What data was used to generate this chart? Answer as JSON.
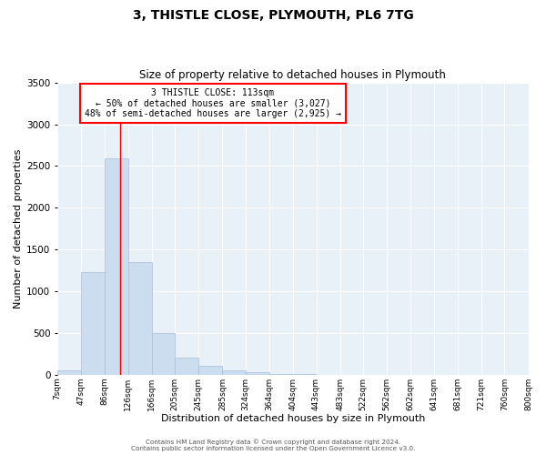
{
  "title": "3, THISTLE CLOSE, PLYMOUTH, PL6 7TG",
  "subtitle": "Size of property relative to detached houses in Plymouth",
  "xlabel": "Distribution of detached houses by size in Plymouth",
  "ylabel": "Number of detached properties",
  "bar_color": "#ccddf0",
  "bar_edgecolor": "#aabfd8",
  "background_color": "#e8f0f8",
  "grid_color": "#ffffff",
  "bin_labels": [
    "7sqm",
    "47sqm",
    "86sqm",
    "126sqm",
    "166sqm",
    "205sqm",
    "245sqm",
    "285sqm",
    "324sqm",
    "364sqm",
    "404sqm",
    "443sqm",
    "483sqm",
    "522sqm",
    "562sqm",
    "602sqm",
    "641sqm",
    "681sqm",
    "721sqm",
    "760sqm",
    "800sqm"
  ],
  "bar_values": [
    50,
    1230,
    2590,
    1350,
    500,
    200,
    110,
    50,
    30,
    10,
    5,
    0,
    0,
    0,
    0,
    0,
    0,
    0,
    0,
    0
  ],
  "ylim": [
    0,
    3500
  ],
  "yticks": [
    0,
    500,
    1000,
    1500,
    2000,
    2500,
    3000,
    3500
  ],
  "red_line_x": 113,
  "annotation_title": "3 THISTLE CLOSE: 113sqm",
  "annotation_line1": "← 50% of detached houses are smaller (3,027)",
  "annotation_line2": "48% of semi-detached houses are larger (2,925) →",
  "footer1": "Contains HM Land Registry data © Crown copyright and database right 2024.",
  "footer2": "Contains public sector information licensed under the Open Government Licence v3.0.",
  "bin_edges": [
    7,
    47,
    86,
    126,
    166,
    205,
    245,
    285,
    324,
    364,
    404,
    443,
    483,
    522,
    562,
    602,
    641,
    681,
    721,
    760,
    800
  ]
}
